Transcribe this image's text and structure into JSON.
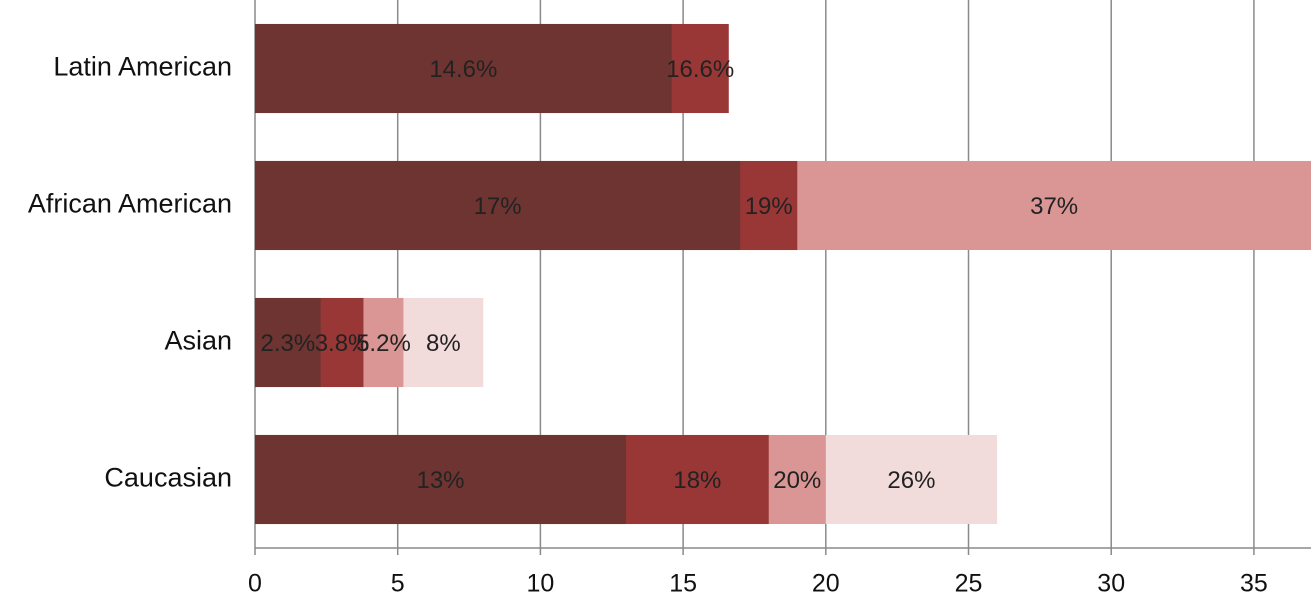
{
  "chart_data": {
    "type": "bar",
    "orientation": "horizontal",
    "overlap": true,
    "categories": [
      "Latin American",
      "African American",
      "Asian",
      "Caucasian"
    ],
    "series": [
      {
        "color": "#6e3431",
        "values": [
          14.6,
          17,
          2.3,
          13
        ],
        "value_labels": [
          "14.6%",
          "17%",
          "2.3%",
          "13%"
        ]
      },
      {
        "color": "#983736",
        "values": [
          16.6,
          19,
          3.8,
          18
        ],
        "value_labels": [
          "16.6%",
          "19%",
          "3.8%",
          "18%"
        ]
      },
      {
        "color": "#d99694",
        "values": [
          null,
          37,
          5.2,
          20
        ],
        "value_labels": [
          null,
          "37%",
          "5.2%",
          "20%"
        ]
      },
      {
        "color": "#f2dcdb",
        "values": [
          null,
          null,
          8,
          26
        ],
        "value_labels": [
          null,
          null,
          "8%",
          "26%"
        ]
      }
    ],
    "xlim": [
      0,
      37
    ],
    "xticks": [
      0,
      5,
      10,
      15,
      20,
      25,
      30,
      35
    ],
    "grid": true
  }
}
